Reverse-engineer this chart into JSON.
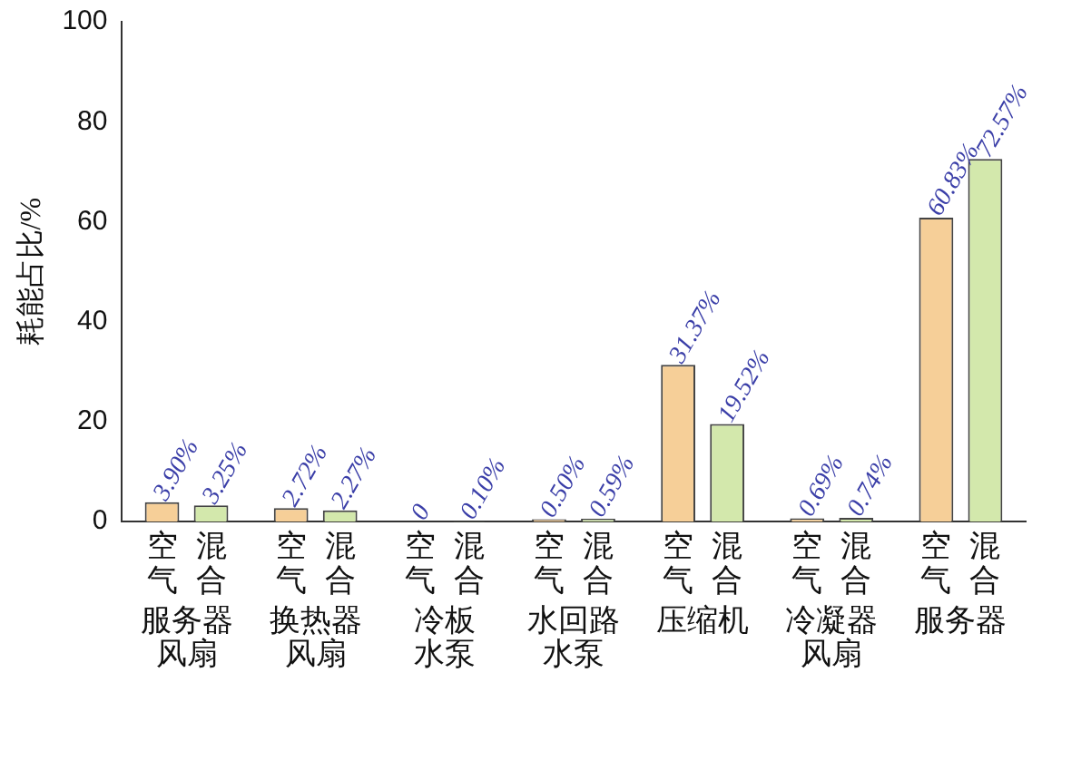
{
  "chart_data": {
    "type": "bar",
    "ylabel": "耗能占比/%",
    "categories": [
      "服务器风扇",
      "换热器风扇",
      "冷板水泵",
      "水回路水泵",
      "压缩机",
      "冷凝器风扇",
      "服务器"
    ],
    "series": [
      {
        "name": "空气",
        "color": "#f6cf98",
        "values": [
          3.9,
          2.72,
          0,
          0.5,
          31.37,
          0.69,
          60.83
        ],
        "value_labels": [
          "3.90%",
          "2.72%",
          "0",
          "0.50%",
          "31.37%",
          "0.69%",
          "60.83%"
        ]
      },
      {
        "name": "混合",
        "color": "#d3e8ac",
        "values": [
          3.25,
          2.27,
          0.1,
          0.59,
          19.52,
          0.74,
          72.57
        ],
        "value_labels": [
          "3.25%",
          "2.27%",
          "0.10%",
          "0.59%",
          "19.52%",
          "0.74%",
          "72.57%"
        ]
      }
    ],
    "ylim": [
      0,
      100
    ],
    "yticks": [
      0,
      20,
      40,
      60,
      80,
      100
    ],
    "grid": false,
    "legend": false
  }
}
